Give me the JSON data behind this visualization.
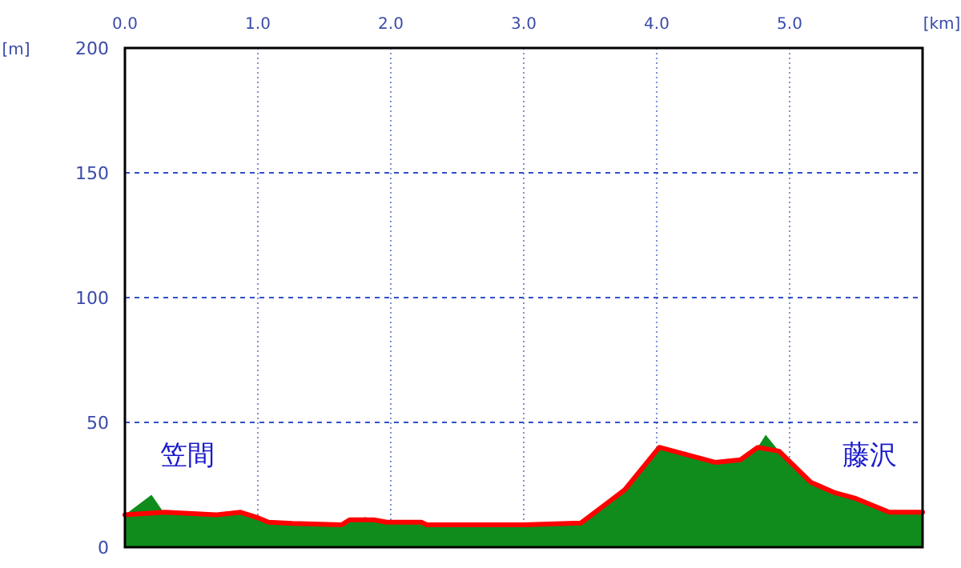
{
  "chart_data": {
    "type": "area",
    "xlabel": "[km]",
    "ylabel": "[m]",
    "xlim": [
      0,
      6
    ],
    "ylim": [
      0,
      200
    ],
    "xticks": [
      {
        "value": 0,
        "label": "0.0"
      },
      {
        "value": 1,
        "label": "1.0"
      },
      {
        "value": 2,
        "label": "2.0"
      },
      {
        "value": 3,
        "label": "3.0"
      },
      {
        "value": 4,
        "label": "4.0"
      },
      {
        "value": 5,
        "label": "5.0"
      }
    ],
    "yticks": [
      0,
      50,
      100,
      150,
      200
    ],
    "grid": true,
    "annotations": [
      "笠間",
      "藤沢"
    ],
    "series": [
      {
        "color": "#108c1c",
        "x": [
          0,
          0.2,
          0.29,
          0.69,
          0.87,
          0.99,
          1.08,
          1.26,
          1.63,
          1.69,
          1.81,
          1.87,
          1.97,
          2.23,
          2.27,
          3.0,
          3.43,
          3.76,
          4.02,
          4.44,
          4.63,
          4.76,
          4.82,
          4.92,
          5.16,
          5.33,
          5.5,
          5.75,
          6.0
        ],
        "values": [
          13,
          21,
          14,
          13,
          14,
          12,
          10,
          9.5,
          9,
          11,
          12,
          11,
          10,
          10,
          9,
          9,
          9.7,
          23,
          40,
          34,
          35,
          40,
          45,
          38.5,
          26,
          22,
          19.5,
          14,
          14
        ]
      },
      {
        "type": "line",
        "color": "#ff0000",
        "x": [
          0,
          0.3,
          0.69,
          0.87,
          0.99,
          1.08,
          1.26,
          1.63,
          1.69,
          1.87,
          1.97,
          2.23,
          2.27,
          3.0,
          3.43,
          3.76,
          4.02,
          4.44,
          4.63,
          4.76,
          4.92,
          5.16,
          5.33,
          5.5,
          5.75,
          6.0
        ],
        "values": [
          13,
          14,
          13,
          14,
          12,
          10,
          9.5,
          9,
          11,
          11,
          10,
          10,
          9,
          9,
          9.7,
          23,
          40,
          34,
          35,
          40,
          38.5,
          26,
          22,
          19.5,
          14,
          14
        ]
      }
    ]
  }
}
